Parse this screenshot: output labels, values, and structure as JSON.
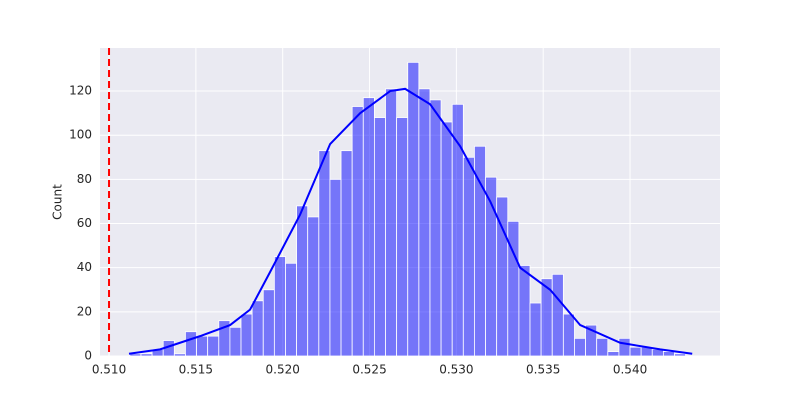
{
  "chart_data": {
    "type": "histogram",
    "y_label": "Count",
    "bins": [
      0.5112,
      0.51184,
      0.51248,
      0.51312,
      0.51376,
      0.5144,
      0.51504,
      0.51568,
      0.51632,
      0.51696,
      0.5176,
      0.51824,
      0.51888,
      0.51952,
      0.52016,
      0.5208,
      0.52144,
      0.52208,
      0.52272,
      0.52336,
      0.524,
      0.52464,
      0.52528,
      0.52592,
      0.52656,
      0.5272,
      0.52784,
      0.52848,
      0.52912,
      0.52976,
      0.5304,
      0.53104,
      0.53168,
      0.53232,
      0.53296,
      0.5336,
      0.53424,
      0.53488,
      0.53552,
      0.53616,
      0.5368,
      0.53744,
      0.53808,
      0.53872,
      0.53936,
      0.54,
      0.54064,
      0.54128,
      0.54192,
      0.54256,
      0.5432
    ],
    "values": [
      1,
      1,
      3,
      7,
      1,
      11,
      9,
      9,
      16,
      13,
      19,
      25,
      30,
      45,
      42,
      68,
      63,
      93,
      80,
      93,
      113,
      117,
      108,
      121,
      108,
      133,
      121,
      116,
      106,
      114,
      90,
      95,
      81,
      72,
      61,
      41,
      24,
      35,
      37,
      19,
      8,
      14,
      8,
      2,
      8,
      4,
      4,
      3,
      2,
      1
    ],
    "color": "#0000ff",
    "kde": {
      "color": "#0000ff",
      "x": [
        0.51115,
        0.51294,
        0.51524,
        0.51697,
        0.51812,
        0.51927,
        0.521,
        0.52273,
        0.52446,
        0.52619,
        0.52705,
        0.52849,
        0.53022,
        0.53195,
        0.53367,
        0.5354,
        0.53713,
        0.53943,
        0.54174,
        0.54358
      ],
      "y": [
        1,
        3,
        9,
        14,
        21,
        38,
        64,
        96,
        110,
        120,
        121,
        114,
        95,
        70,
        40,
        30,
        14,
        6,
        3,
        1
      ]
    },
    "vline": {
      "x": 0.51,
      "color": "#ff0000"
    },
    "xlim": [
      0.50948,
      0.54518
    ],
    "ylim": [
      0,
      139.5
    ],
    "xticks": [
      {
        "value": 0.51,
        "label": "0.510"
      },
      {
        "value": 0.515,
        "label": "0.515"
      },
      {
        "value": 0.52,
        "label": "0.520"
      },
      {
        "value": 0.525,
        "label": "0.525"
      },
      {
        "value": 0.53,
        "label": "0.530"
      },
      {
        "value": 0.535,
        "label": "0.535"
      },
      {
        "value": 0.54,
        "label": "0.540"
      }
    ],
    "yticks": [
      0,
      20,
      40,
      60,
      80,
      100,
      120
    ],
    "grid": true
  }
}
